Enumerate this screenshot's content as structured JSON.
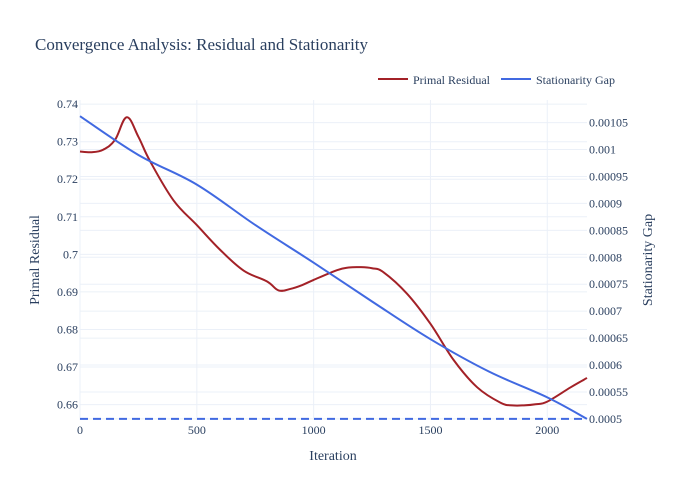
{
  "chart_data": {
    "type": "line",
    "title": "Convergence Analysis: Residual and Stationarity",
    "xlabel": "Iteration",
    "ylabel_left": "Primal Residual",
    "ylabel_right": "Stationarity Gap",
    "legend_position": "top-right",
    "grid": true,
    "xlim": [
      0,
      2170
    ],
    "ylim_left": [
      0.6559,
      0.7411
    ],
    "ylim_right": [
      0.000498,
      0.001092
    ],
    "x_ticks": [
      0,
      500,
      1000,
      1500,
      2000
    ],
    "y_left_ticks": [
      {
        "value": 0.66,
        "label": "0.66"
      },
      {
        "value": 0.67,
        "label": "0.67"
      },
      {
        "value": 0.68,
        "label": "0.68"
      },
      {
        "value": 0.69,
        "label": "0.69"
      },
      {
        "value": 0.7,
        "label": "0.7"
      },
      {
        "value": 0.71,
        "label": "0.71"
      },
      {
        "value": 0.72,
        "label": "0.72"
      },
      {
        "value": 0.73,
        "label": "0.73"
      },
      {
        "value": 0.74,
        "label": "0.74"
      }
    ],
    "y_right_ticks": [
      {
        "value": 0.0005,
        "label": "0.0005"
      },
      {
        "value": 0.00055,
        "label": "0.00055"
      },
      {
        "value": 0.0006,
        "label": "0.0006"
      },
      {
        "value": 0.00065,
        "label": "0.00065"
      },
      {
        "value": 0.0007,
        "label": "0.0007"
      },
      {
        "value": 0.00075,
        "label": "0.00075"
      },
      {
        "value": 0.0008,
        "label": "0.0008"
      },
      {
        "value": 0.00085,
        "label": "0.00085"
      },
      {
        "value": 0.0009,
        "label": "0.0009"
      },
      {
        "value": 0.00095,
        "label": "0.00095"
      },
      {
        "value": 0.001,
        "label": "0.001"
      },
      {
        "value": 0.00105,
        "label": "0.00105"
      }
    ],
    "series": [
      {
        "name": "Primal Residual",
        "axis": "left",
        "color": "#a32127",
        "x": [
          0,
          50,
          100,
          150,
          200,
          250,
          300,
          400,
          500,
          600,
          700,
          800,
          850,
          900,
          950,
          1000,
          1100,
          1150,
          1200,
          1250,
          1300,
          1400,
          1500,
          1600,
          1700,
          1800,
          1850,
          1900,
          1950,
          2000,
          2100,
          2170
        ],
        "y": [
          0.7274,
          0.7272,
          0.7279,
          0.7305,
          0.7365,
          0.7313,
          0.7248,
          0.7144,
          0.7078,
          0.7012,
          0.6957,
          0.6928,
          0.6904,
          0.6908,
          0.6918,
          0.6932,
          0.6958,
          0.6965,
          0.6966,
          0.6963,
          0.6952,
          0.6895,
          0.6815,
          0.6718,
          0.6646,
          0.6605,
          0.6598,
          0.6598,
          0.6601,
          0.6608,
          0.6646,
          0.6671
        ]
      },
      {
        "name": "Stationarity Gap",
        "axis": "right",
        "color": "#4169e1",
        "x": [
          0,
          250,
          500,
          750,
          1000,
          1250,
          1500,
          1750,
          2000,
          2170
        ],
        "y": [
          0.001062,
          0.00099,
          0.000935,
          0.00086,
          0.00079,
          0.000718,
          0.000648,
          0.000588,
          0.00054,
          0.0005
        ]
      }
    ],
    "reference_line": {
      "axis": "right",
      "y": 0.0005,
      "color": "#4169e1",
      "style": "dash"
    }
  }
}
